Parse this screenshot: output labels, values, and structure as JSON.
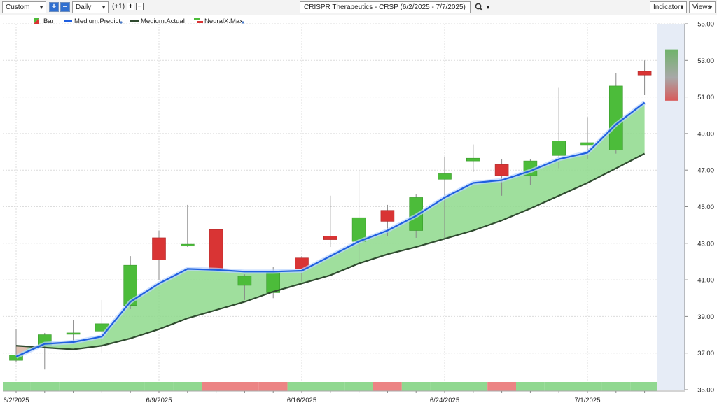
{
  "toolbar": {
    "range_select": "Custom",
    "interval_select": "Daily",
    "offset_label": "(+1)",
    "title": "CRISPR Therapeutics - CRSP (6/2/2025 - 7/7/2025)",
    "indicators_label": "Indicators",
    "views_label": "Views"
  },
  "legend": [
    {
      "label": "Bar",
      "icon": "bar-icon"
    },
    {
      "label": "Medium.Predict",
      "color": "#1f5fe0"
    },
    {
      "label": "Medium.Actual",
      "color": "#2f4a2f"
    },
    {
      "label": "NeuralX.Max",
      "icon": "neuralx-icon"
    }
  ],
  "colors": {
    "up": "#4cbc3a",
    "down": "#d93434",
    "predict": "#1f5fe0",
    "actual": "#2f4a2f",
    "fill": "#8ed98c",
    "neural_up": "#90d890",
    "neural_down": "#ec8484"
  },
  "chart_data": {
    "type": "candlestick",
    "ylim": [
      35.0,
      55.0
    ],
    "yticks": [
      "35.00",
      "37.00",
      "39.00",
      "41.00",
      "43.00",
      "45.00",
      "47.00",
      "49.00",
      "51.00",
      "53.00",
      "55.00"
    ],
    "xticks": [
      {
        "label": "6/2/2025",
        "index": 0
      },
      {
        "label": "6/9/2025",
        "index": 5
      },
      {
        "label": "6/16/2025",
        "index": 10
      },
      {
        "label": "6/24/2025",
        "index": 15
      },
      {
        "label": "7/1/2025",
        "index": 20
      }
    ],
    "candles": [
      {
        "o": 36.6,
        "h": 38.3,
        "l": 36.5,
        "c": 36.9
      },
      {
        "o": 37.4,
        "h": 38.1,
        "l": 36.1,
        "c": 38.0
      },
      {
        "o": 38.05,
        "h": 38.8,
        "l": 37.5,
        "c": 38.1
      },
      {
        "o": 38.2,
        "h": 39.9,
        "l": 37.0,
        "c": 38.6
      },
      {
        "o": 39.6,
        "h": 42.3,
        "l": 39.4,
        "c": 41.8
      },
      {
        "o": 43.3,
        "h": 43.7,
        "l": 41.0,
        "c": 42.1
      },
      {
        "o": 42.85,
        "h": 45.1,
        "l": 42.8,
        "c": 42.95
      },
      {
        "o": 43.75,
        "h": 43.75,
        "l": 41.6,
        "c": 41.6
      },
      {
        "o": 40.7,
        "h": 41.3,
        "l": 39.9,
        "c": 41.2
      },
      {
        "o": 40.3,
        "h": 41.7,
        "l": 40.0,
        "c": 41.4
      },
      {
        "o": 42.2,
        "h": 42.3,
        "l": 40.9,
        "c": 41.6
      },
      {
        "o": 43.4,
        "h": 45.6,
        "l": 42.8,
        "c": 43.2
      },
      {
        "o": 43.1,
        "h": 47.0,
        "l": 42.0,
        "c": 44.4
      },
      {
        "o": 44.8,
        "h": 45.1,
        "l": 43.4,
        "c": 44.2
      },
      {
        "o": 43.7,
        "h": 45.7,
        "l": 43.3,
        "c": 45.5
      },
      {
        "o": 46.5,
        "h": 47.7,
        "l": 43.3,
        "c": 46.8
      },
      {
        "o": 47.5,
        "h": 48.4,
        "l": 46.9,
        "c": 47.65
      },
      {
        "o": 47.3,
        "h": 47.6,
        "l": 45.6,
        "c": 46.7
      },
      {
        "o": 46.7,
        "h": 47.6,
        "l": 46.2,
        "c": 47.5
      },
      {
        "o": 47.8,
        "h": 51.5,
        "l": 47.1,
        "c": 48.6
      },
      {
        "o": 48.35,
        "h": 49.9,
        "l": 47.6,
        "c": 48.5
      },
      {
        "o": 48.1,
        "h": 52.3,
        "l": 47.9,
        "c": 51.6
      },
      {
        "o": 52.4,
        "h": 53.0,
        "l": 51.1,
        "c": 52.2
      }
    ],
    "predict": [
      36.8,
      37.5,
      37.6,
      37.9,
      39.8,
      40.8,
      41.6,
      41.55,
      41.45,
      41.45,
      41.5,
      42.3,
      43.1,
      43.7,
      44.5,
      45.5,
      46.3,
      46.45,
      46.95,
      47.6,
      47.95,
      49.5,
      50.7
    ],
    "actual": [
      37.4,
      37.3,
      37.2,
      37.4,
      37.8,
      38.3,
      38.9,
      39.35,
      39.8,
      40.35,
      40.8,
      41.25,
      41.9,
      42.4,
      42.8,
      43.25,
      43.7,
      44.25,
      44.9,
      45.6,
      46.3,
      47.1,
      47.9
    ],
    "neuralx_max": {
      "top": 53.6,
      "bottom": 50.8
    },
    "signal_strip": [
      "up",
      "up",
      "up",
      "up",
      "up",
      "up",
      "up",
      "down",
      "down",
      "down",
      "up",
      "up",
      "up",
      "down",
      "up",
      "up",
      "up",
      "down",
      "up",
      "up",
      "up",
      "up",
      "up"
    ]
  }
}
